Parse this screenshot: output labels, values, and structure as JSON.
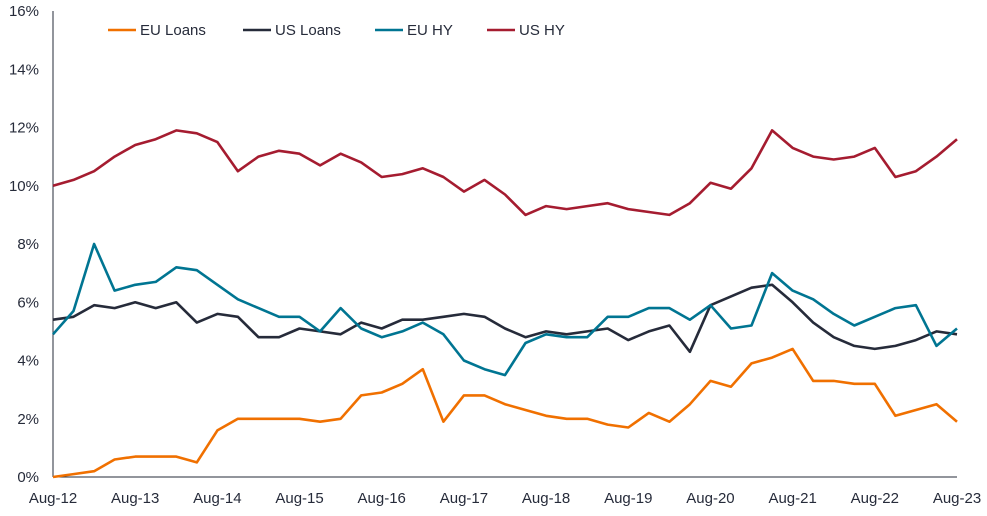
{
  "chart_data": {
    "type": "line",
    "title": "",
    "xlabel": "",
    "ylabel": "",
    "ylim": [
      0,
      16
    ],
    "yticks": [
      "0%",
      "2%",
      "4%",
      "6%",
      "8%",
      "10%",
      "12%",
      "14%",
      "16%"
    ],
    "ytick_values": [
      0,
      2,
      4,
      6,
      8,
      10,
      12,
      14,
      16
    ],
    "xticks": [
      "Aug-12",
      "Aug-13",
      "Aug-14",
      "Aug-15",
      "Aug-16",
      "Aug-17",
      "Aug-18",
      "Aug-19",
      "Aug-20",
      "Aug-21",
      "Aug-22",
      "Aug-23"
    ],
    "x_frequency": "quarterly, Aug-12 to Aug-23",
    "grid": false,
    "legend_position": "top",
    "series": [
      {
        "name": "EU Loans",
        "color": "#F07000",
        "values": [
          0.0,
          0.1,
          0.2,
          0.6,
          0.7,
          0.7,
          0.7,
          0.5,
          1.6,
          2.0,
          2.0,
          2.0,
          2.0,
          1.9,
          2.0,
          2.8,
          2.9,
          3.2,
          3.7,
          1.9,
          2.8,
          2.8,
          2.5,
          2.3,
          2.1,
          2.0,
          2.0,
          1.8,
          1.7,
          2.2,
          1.9,
          2.5,
          3.3,
          3.1,
          3.9,
          4.1,
          4.4,
          3.3,
          3.3,
          3.2,
          3.2,
          2.1,
          2.3,
          2.5,
          1.9
        ]
      },
      {
        "name": "US Loans",
        "color": "#262B3A",
        "values": [
          5.4,
          5.5,
          5.9,
          5.8,
          6.0,
          5.8,
          6.0,
          5.3,
          5.6,
          5.5,
          4.8,
          4.8,
          5.1,
          5.0,
          4.9,
          5.3,
          5.1,
          5.4,
          5.4,
          5.5,
          5.6,
          5.5,
          5.1,
          4.8,
          5.0,
          4.9,
          5.0,
          5.1,
          4.7,
          5.0,
          5.2,
          4.3,
          5.9,
          6.2,
          6.5,
          6.6,
          6.0,
          5.3,
          4.8,
          4.5,
          4.4,
          4.5,
          4.7,
          5.0,
          4.9
        ]
      },
      {
        "name": "EU HY",
        "color": "#007592",
        "values": [
          4.9,
          5.7,
          8.0,
          6.4,
          6.6,
          6.7,
          7.2,
          7.1,
          6.6,
          6.1,
          5.8,
          5.5,
          5.5,
          5.0,
          5.8,
          5.1,
          4.8,
          5.0,
          5.3,
          4.9,
          4.0,
          3.7,
          3.5,
          4.6,
          4.9,
          4.8,
          4.8,
          5.5,
          5.5,
          5.8,
          5.8,
          5.4,
          5.9,
          5.1,
          5.2,
          7.0,
          6.4,
          6.1,
          5.6,
          5.2,
          5.5,
          5.8,
          5.9,
          4.5,
          5.1
        ]
      },
      {
        "name": "US HY",
        "color": "#A51C30",
        "values": [
          10.0,
          10.2,
          10.5,
          11.0,
          11.4,
          11.6,
          11.9,
          11.8,
          11.5,
          10.5,
          11.0,
          11.2,
          11.1,
          10.7,
          11.1,
          10.8,
          10.3,
          10.4,
          10.6,
          10.3,
          9.8,
          10.2,
          9.7,
          9.0,
          9.3,
          9.2,
          9.3,
          9.4,
          9.2,
          9.1,
          9.0,
          9.4,
          10.1,
          9.9,
          10.6,
          11.9,
          11.3,
          11.0,
          10.9,
          11.0,
          11.3,
          10.3,
          10.5,
          11.0,
          11.6
        ]
      }
    ]
  }
}
